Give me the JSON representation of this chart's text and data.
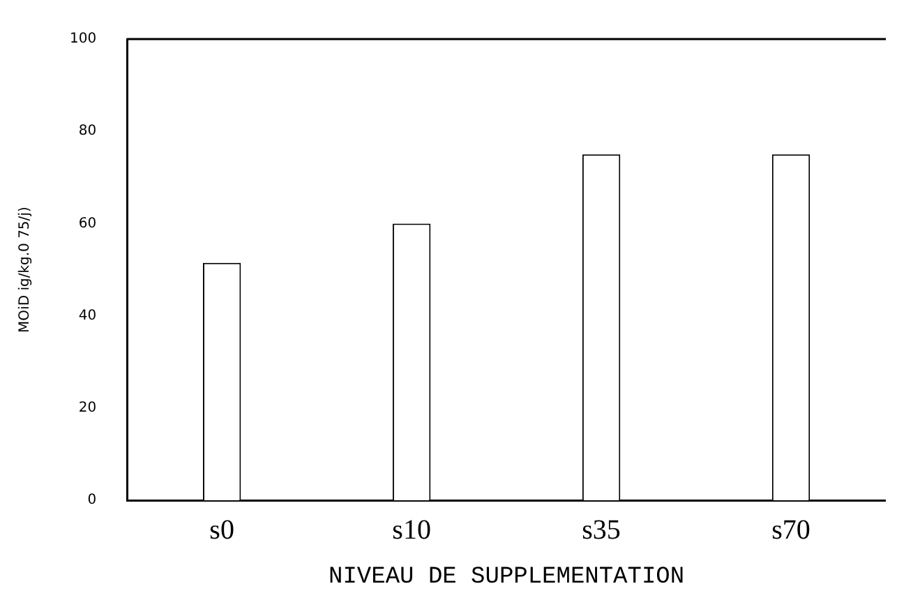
{
  "chart_data": {
    "type": "bar",
    "xlabel": "NIVEAU DE SUPPLEMENTATION",
    "ylabel": "MOiD ig/kg.0 75/j)",
    "categories": [
      "s0",
      "s10",
      "s35",
      "s70"
    ],
    "values": [
      51.5,
      60,
      75,
      75
    ],
    "color": "#ffffff",
    "ylim": [
      0,
      100
    ],
    "yticks": [
      0,
      20,
      40,
      60,
      80,
      100
    ],
    "grid": false,
    "legend": false
  }
}
